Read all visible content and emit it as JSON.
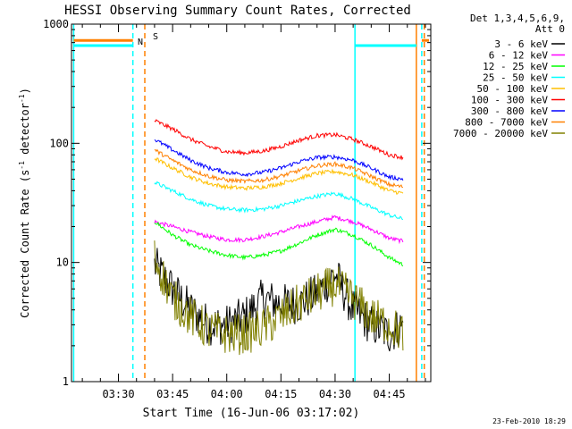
{
  "chart_data": {
    "type": "line",
    "title": "HESSI Observing Summary Count Rates, Corrected",
    "xlabel": "Start Time (16-Jun-06 03:17:02)",
    "ylabel": "Corrected Count Rate (s",
    "ylabel_sup1": "-1",
    "ylabel_mid": " detector",
    "ylabel_sup2": "-1",
    "ylabel_end": ")",
    "yscale": "log",
    "ylim": [
      1,
      1000
    ],
    "y_ticks": [
      {
        "value": 1,
        "label": "1"
      },
      {
        "value": 10,
        "label": "10"
      },
      {
        "value": 100,
        "label": "100"
      },
      {
        "value": 1000,
        "label": "1000"
      }
    ],
    "xlim_minutes": [
      197.0,
      296.5
    ],
    "x_ticks": [
      {
        "minutes": 210,
        "label": "03:30"
      },
      {
        "minutes": 225,
        "label": "03:45"
      },
      {
        "minutes": 240,
        "label": "04:00"
      },
      {
        "minutes": 255,
        "label": "04:15"
      },
      {
        "minutes": 270,
        "label": "04:30"
      },
      {
        "minutes": 285,
        "label": "04:45"
      }
    ],
    "x_times": [
      "03:40",
      "03:45",
      "03:50",
      "03:55",
      "04:00",
      "04:05",
      "04:10",
      "04:15",
      "04:20",
      "04:25",
      "04:30",
      "04:35",
      "04:40",
      "04:45",
      "04:49"
    ],
    "x_minutes": [
      220,
      225,
      230,
      235,
      240,
      245,
      250,
      255,
      260,
      265,
      270,
      275,
      280,
      285,
      289
    ],
    "legend_header": [
      "Det 1,3,4,5,6,9,",
      "Att 0"
    ],
    "series": [
      {
        "name": "3 - 6 keV",
        "color": "#000000",
        "values": [
          9.5,
          6,
          4,
          3,
          3,
          3.5,
          5,
          4.5,
          4.5,
          5.5,
          8,
          4,
          3,
          2.5,
          3
        ]
      },
      {
        "name": "6 - 12 keV",
        "color": "#ff00ff",
        "values": [
          22,
          20,
          18,
          16.5,
          15.5,
          15.5,
          16.5,
          18,
          20,
          22,
          24,
          22,
          19,
          16,
          15
        ]
      },
      {
        "name": "12 - 25 keV",
        "color": "#00ff00",
        "values": [
          22,
          17,
          14,
          12.5,
          11.5,
          11,
          11.5,
          12.5,
          14.5,
          17,
          19,
          17,
          14,
          11,
          9.5
        ]
      },
      {
        "name": "25 - 50 keV",
        "color": "#00ffff",
        "values": [
          47,
          40,
          34,
          30,
          28,
          27.5,
          28,
          30,
          33,
          36,
          38,
          34,
          29,
          25,
          23
        ]
      },
      {
        "name": "50 - 100 keV",
        "color": "#ffbf00",
        "values": [
          75,
          62,
          52,
          46,
          43,
          42,
          43,
          46,
          51,
          56,
          58,
          54,
          47,
          40,
          38
        ]
      },
      {
        "name": "100 - 300 keV",
        "color": "#ff0000",
        "values": [
          155,
          132,
          108,
          94,
          85,
          83,
          86,
          94,
          106,
          116,
          118,
          108,
          94,
          80,
          76
        ]
      },
      {
        "name": "300 - 800 keV",
        "color": "#0000ff",
        "values": [
          108,
          88,
          72,
          62,
          57,
          55,
          57,
          62,
          70,
          76,
          77,
          72,
          62,
          52,
          50
        ]
      },
      {
        "name": "800 - 7000 keV",
        "color": "#ff8000",
        "values": [
          88,
          72,
          60,
          53,
          49,
          48,
          49,
          53,
          59,
          65,
          67,
          62,
          53,
          45,
          43
        ]
      },
      {
        "name": "7000 - 20000 keV",
        "color": "#808000",
        "values": [
          11,
          5,
          3.5,
          2.7,
          2.5,
          2.5,
          2.8,
          3.5,
          4.5,
          5.5,
          6.5,
          5,
          3.5,
          3,
          2.5
        ]
      }
    ],
    "annotations": [
      {
        "label": "S",
        "color": "#ff8000"
      },
      {
        "label": "N",
        "color": "#00ffff"
      }
    ],
    "vertical_markers_minutes": [
      {
        "minutes": 197.6,
        "color": "#00ffff",
        "style": "solid"
      },
      {
        "minutes": 214.0,
        "color": "#00ffff",
        "style": "dashed"
      },
      {
        "minutes": 217.3,
        "color": "#ff8000",
        "style": "dashed"
      },
      {
        "minutes": 275.5,
        "color": "#00ffff",
        "style": "solid"
      },
      {
        "minutes": 292.5,
        "color": "#ff8000",
        "style": "solid"
      },
      {
        "minutes": 294.0,
        "color": "#00ffff",
        "style": "dashed"
      },
      {
        "minutes": 294.7,
        "color": "#ff8000",
        "style": "dashed"
      }
    ],
    "horizontal_bars": [
      {
        "from": 197.6,
        "to": 214.0,
        "value": 730,
        "color": "#ff8000"
      },
      {
        "from": 197.6,
        "to": 214.0,
        "value": 660,
        "color": "#00ffff"
      },
      {
        "from": 275.5,
        "to": 292.5,
        "value": 660,
        "color": "#00ffff"
      },
      {
        "from": 294.0,
        "to": 296.0,
        "value": 730,
        "color": "#ff8000"
      }
    ],
    "grid": false,
    "legend_position": "right"
  },
  "footer": {
    "timestamp": "23-Feb-2010 18:29"
  }
}
